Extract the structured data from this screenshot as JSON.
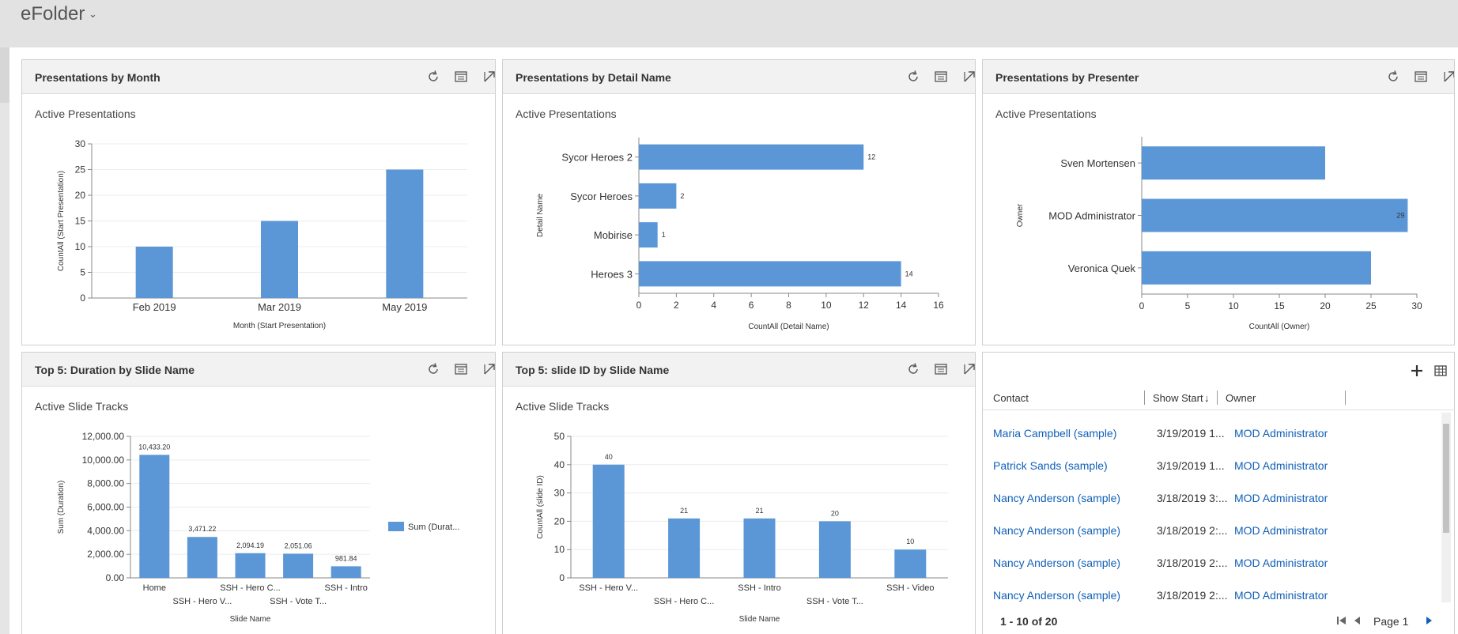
{
  "app": {
    "title": "eFolder"
  },
  "panels": {
    "month": {
      "title": "Presentations by Month",
      "view": "Active Presentations",
      "chart_data": {
        "type": "bar",
        "categories": [
          "Feb 2019",
          "Mar 2019",
          "May 2019"
        ],
        "values": [
          10,
          15,
          25
        ],
        "xlabel": "Month (Start Presentation)",
        "ylabel": "CountAll (Start Presentation)",
        "ylim": [
          0,
          30
        ],
        "yticks": [
          "0",
          "5",
          "10",
          "15",
          "20",
          "25",
          "30"
        ],
        "grid": true,
        "color": "#5b97d6"
      }
    },
    "detail": {
      "title": "Presentations by Detail Name",
      "view": "Active Presentations",
      "chart_data": {
        "type": "bar",
        "orientation": "horizontal",
        "categories": [
          "Sycor Heroes 2",
          "Sycor Heroes",
          "Mobirise",
          "Heroes 3"
        ],
        "values": [
          12,
          2,
          1,
          14
        ],
        "labels": [
          "12",
          "2",
          "1",
          "14"
        ],
        "xlabel": "CountAll (Detail Name)",
        "ylabel": "Detail Name",
        "xlim": [
          0,
          16
        ],
        "xticks": [
          "0",
          "2",
          "4",
          "6",
          "8",
          "10",
          "12",
          "14",
          "16"
        ],
        "color": "#5b97d6"
      }
    },
    "presenter": {
      "title": "Presentations by Presenter",
      "view": "Active Presentations",
      "chart_data": {
        "type": "bar",
        "orientation": "horizontal",
        "categories": [
          "Sven Mortensen",
          "MOD Administrator",
          "Veronica Quek"
        ],
        "values": [
          20,
          29,
          25
        ],
        "labels": [
          "",
          "29",
          ""
        ],
        "xlabel": "CountAll (Owner)",
        "ylabel": "Owner",
        "xlim": [
          0,
          30
        ],
        "xticks": [
          "0",
          "5",
          "10",
          "15",
          "20",
          "25",
          "30"
        ],
        "color": "#5b97d6"
      }
    },
    "duration": {
      "title": "Top 5: Duration by Slide Name",
      "view": "Active Slide Tracks",
      "chart_data": {
        "type": "bar",
        "categories": [
          "Home",
          "SSH - Hero V...",
          "SSH - Hero C...",
          "SSH - Vote T...",
          "SSH - Intro"
        ],
        "values": [
          10433.2,
          3471.22,
          2094.19,
          2051.06,
          981.84
        ],
        "labels": [
          "10,433.20",
          "3,471.22",
          "2,094.19",
          "2,051.06",
          "981.84"
        ],
        "xlabel": "Slide Name",
        "ylabel": "Sum (Duration)",
        "ylim": [
          0,
          12000
        ],
        "yticks": [
          "0.00",
          "2,000.00",
          "4,000.00",
          "6,000.00",
          "8,000.00",
          "10,000.00",
          "12,000.00"
        ],
        "legend": "Sum (Durat...",
        "legend_position": "right",
        "color": "#5b97d6"
      }
    },
    "slideid": {
      "title": "Top 5: slide ID by Slide Name",
      "view": "Active Slide Tracks",
      "chart_data": {
        "type": "bar",
        "categories": [
          "SSH - Hero V...",
          "SSH - Hero C...",
          "SSH - Intro",
          "SSH - Vote T...",
          "SSH - Video"
        ],
        "values": [
          40,
          21,
          21,
          20,
          10
        ],
        "labels": [
          "40",
          "21",
          "21",
          "20",
          "10"
        ],
        "xlabel": "Slide Name",
        "ylabel": "CountAll (slide ID)",
        "ylim": [
          0,
          50
        ],
        "yticks": [
          "0",
          "10",
          "20",
          "30",
          "40",
          "50"
        ],
        "color": "#5b97d6"
      }
    }
  },
  "grid": {
    "columns": {
      "contact": "Contact",
      "show_start": "Show Start",
      "owner": "Owner"
    },
    "sort_arrow": "↓",
    "rows": [
      {
        "contact": "Maria Campbell (sample)",
        "show_start": "3/19/2019 1...",
        "owner": "MOD Administrator"
      },
      {
        "contact": "Patrick Sands (sample)",
        "show_start": "3/19/2019 1...",
        "owner": "MOD Administrator"
      },
      {
        "contact": "Nancy Anderson (sample)",
        "show_start": "3/18/2019 3:...",
        "owner": "MOD Administrator"
      },
      {
        "contact": "Nancy Anderson (sample)",
        "show_start": "3/18/2019 2:...",
        "owner": "MOD Administrator"
      },
      {
        "contact": "Nancy Anderson (sample)",
        "show_start": "3/18/2019 2:...",
        "owner": "MOD Administrator"
      },
      {
        "contact": "Nancy Anderson (sample)",
        "show_start": "3/18/2019 2:...",
        "owner": "MOD Administrator"
      }
    ],
    "record_count": "1 - 10 of 20",
    "page_label": "Page 1"
  },
  "icons": {
    "refresh": "refresh-icon",
    "view_records": "view-records-icon",
    "expand": "expand-icon",
    "add": "add-icon",
    "grid_view": "grid-view-icon",
    "first_page": "first-page-icon",
    "prev_page": "previous-page-icon",
    "next_page": "next-page-icon"
  },
  "colors": {
    "bar": "#5b97d6",
    "link": "#1160b7"
  }
}
